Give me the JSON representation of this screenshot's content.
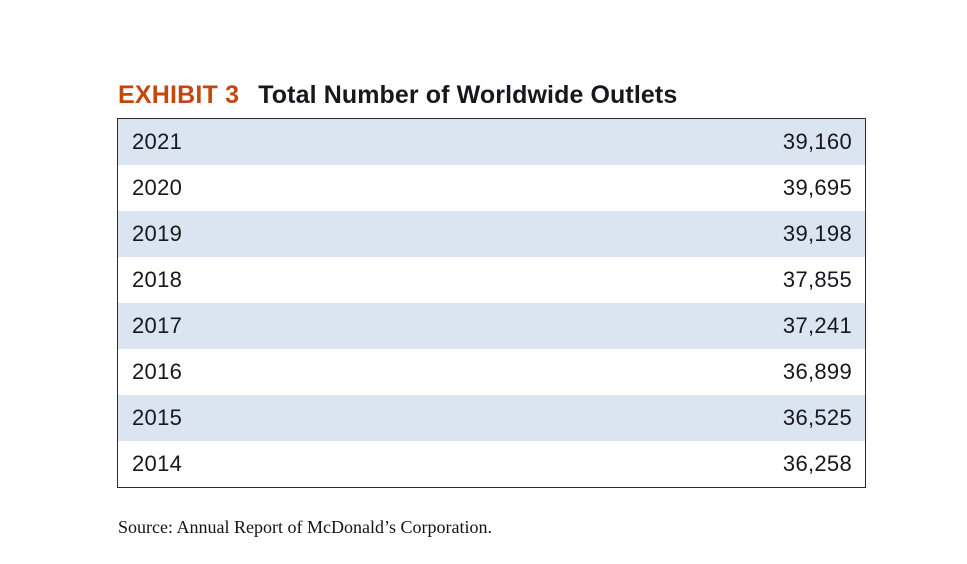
{
  "exhibit": {
    "label": "EXHIBIT 3",
    "title": "Total Number of Worldwide Outlets"
  },
  "table": {
    "rows": [
      {
        "year": "2021",
        "value": "39,160"
      },
      {
        "year": "2020",
        "value": "39,695"
      },
      {
        "year": "2019",
        "value": "39,198"
      },
      {
        "year": "2018",
        "value": "37,855"
      },
      {
        "year": "2017",
        "value": "37,241"
      },
      {
        "year": "2016",
        "value": "36,899"
      },
      {
        "year": "2015",
        "value": "36,525"
      },
      {
        "year": "2014",
        "value": "36,258"
      }
    ]
  },
  "source": "Source: Annual Report of McDonald’s Corporation.",
  "colors": {
    "exhibit_label": "#c2480f",
    "title_text": "#16181d",
    "row_shaded": "#dbe5f1",
    "row_plain": "#ffffff",
    "table_border": "#2b2b2b",
    "source_text": "#141414",
    "page_background": "#ffffff"
  },
  "chart_data": {
    "type": "table",
    "title": "Total Number of Worldwide Outlets",
    "categories": [
      "2021",
      "2020",
      "2019",
      "2018",
      "2017",
      "2016",
      "2015",
      "2014"
    ],
    "values": [
      39160,
      39695,
      39198,
      37855,
      37241,
      36899,
      36525,
      36258
    ],
    "source": "Source: Annual Report of McDonald’s Corporation.",
    "layout_hints": {
      "row_striping": "alternating light blue starting with first row",
      "year_alignment": "left",
      "value_alignment": "right"
    }
  }
}
